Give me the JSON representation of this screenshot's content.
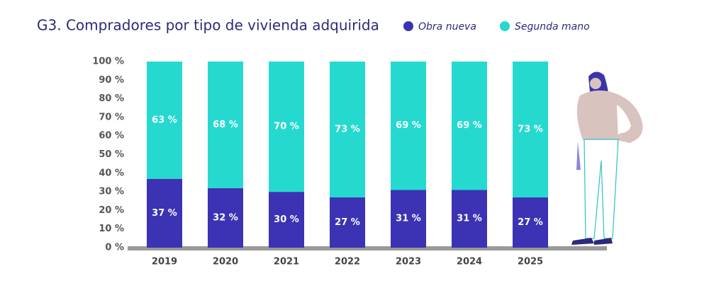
{
  "chart_data": {
    "type": "stacked_bar",
    "title": "G3. Compradores por tipo de vivienda adquirida",
    "categories": [
      "2019",
      "2020",
      "2021",
      "2022",
      "2023",
      "2024",
      "2025"
    ],
    "series": [
      {
        "name": "Obra nueva",
        "color": "#3b33b3",
        "values": [
          37,
          32,
          30,
          27,
          31,
          31,
          27
        ],
        "value_labels": [
          "37 %",
          "32 %",
          "30 %",
          "27 %",
          "31 %",
          "31 %",
          "27 %"
        ]
      },
      {
        "name": "Segunda mano",
        "color": "#26d9cf",
        "values": [
          63,
          68,
          70,
          73,
          69,
          69,
          73
        ],
        "value_labels": [
          "63 %",
          "68 %",
          "70 %",
          "73 %",
          "69 %",
          "69 %",
          "73 %"
        ]
      }
    ],
    "ylim": [
      0,
      100
    ],
    "yticks": [
      {
        "value": 0,
        "label": "0 %"
      },
      {
        "value": 10,
        "label": "10 %"
      },
      {
        "value": 20,
        "label": "20 %"
      },
      {
        "value": 30,
        "label": "30 %"
      },
      {
        "value": 40,
        "label": "40 %"
      },
      {
        "value": 50,
        "label": "50 %"
      },
      {
        "value": 60,
        "label": "60 %"
      },
      {
        "value": 70,
        "label": "70 %"
      },
      {
        "value": 80,
        "label": "80 %"
      },
      {
        "value": 90,
        "label": "90 %"
      },
      {
        "value": 100,
        "label": "100 %"
      }
    ],
    "legend": "top"
  }
}
